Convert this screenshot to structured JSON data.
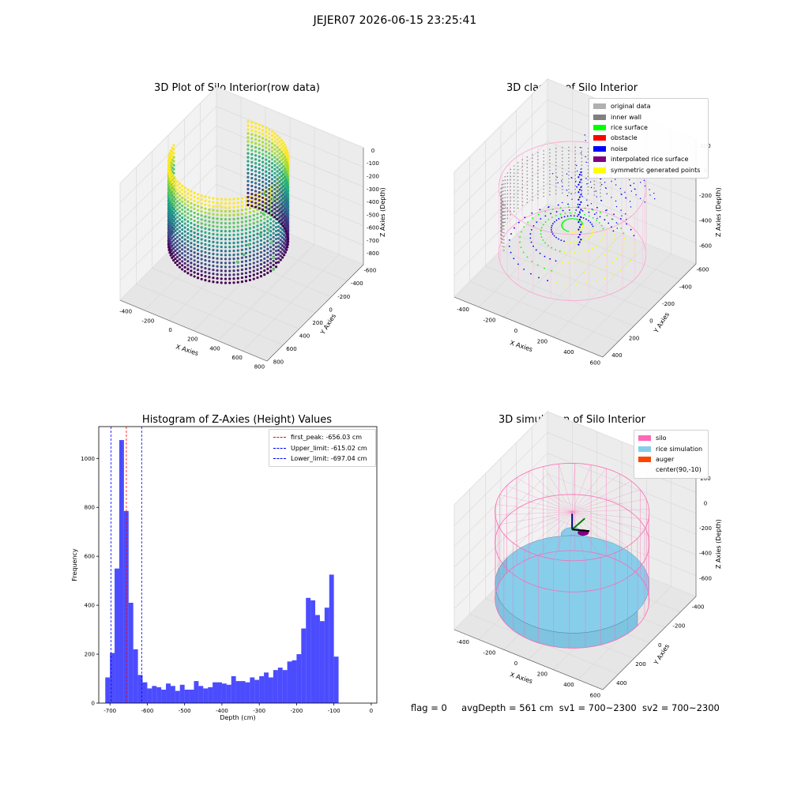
{
  "suptitle": "JEJER07 2026-06-15 23:25:41",
  "panels": {
    "raw": {
      "title": "3D Plot of Silo Interior(row data)",
      "xlabel": "X Axies",
      "ylabel": "Y Axies",
      "zlabel": "Z Axies (Depth)",
      "xticks": [
        "-400",
        "-200",
        "0",
        "200",
        "400",
        "600",
        "800"
      ],
      "yticks": [
        "-600",
        "-400",
        "-200",
        "0",
        "200",
        "400",
        "600",
        "800"
      ],
      "zticks": [
        "0",
        "-100",
        "-200",
        "-300",
        "-400",
        "-500",
        "-600",
        "-700",
        "-800"
      ]
    },
    "classify": {
      "title": "3D classify of Silo Interior",
      "xlabel": "X Axies",
      "ylabel": "Y Axies",
      "zlabel": "Z Axies (Depth)",
      "xticks": [
        "-400",
        "-200",
        "0",
        "200",
        "400",
        "600"
      ],
      "yticks": [
        "-600",
        "-400",
        "-200",
        "0",
        "200",
        "400"
      ],
      "zticks": [
        "200",
        "0",
        "-200",
        "-400",
        "-600"
      ],
      "legend": [
        {
          "label": "original data",
          "color": "#b0b0b0"
        },
        {
          "label": "inner wall",
          "color": "#808080"
        },
        {
          "label": "rice surface",
          "color": "#00ff00"
        },
        {
          "label": "obstacle",
          "color": "#ff0000"
        },
        {
          "label": "noise",
          "color": "#0000ff"
        },
        {
          "label": "interpolated rice surface",
          "color": "#800080"
        },
        {
          "label": "symmetric generated points",
          "color": "#ffff00"
        }
      ]
    },
    "simulation": {
      "title": "3D simulation of Silo Interior",
      "xlabel": "X Axies",
      "ylabel": "Y Axies",
      "zlabel": "Z Axies (Depth)",
      "xticks": [
        "-400",
        "-200",
        "0",
        "200",
        "400",
        "600"
      ],
      "yticks": [
        "-400",
        "-200",
        "0",
        "200",
        "400"
      ],
      "zticks": [
        "200",
        "0",
        "-200",
        "-400",
        "-600"
      ],
      "legend": [
        {
          "label": "silo",
          "color": "#ff69b4"
        },
        {
          "label": "rice simulation",
          "color": "#87ceeb"
        },
        {
          "label": "auger",
          "color": "#ff4500"
        },
        {
          "label": "center(90,-10)",
          "color": ""
        }
      ]
    }
  },
  "status": {
    "flag": "flag = 0",
    "avg_depth": "avgDepth = 561 cm",
    "sv1": "sv1 = 700~2300",
    "sv2": "sv2 = 700~2300"
  },
  "chart_data": [
    {
      "type": "histogram",
      "title": "Histogram of Z-Axies (Height) Values",
      "xlabel": "Depth (cm)",
      "ylabel": "Frequency",
      "xlim": [
        -730,
        15
      ],
      "ylim": [
        0,
        1130
      ],
      "xticks": [
        -700,
        -600,
        -500,
        -400,
        -300,
        -200,
        -100,
        0
      ],
      "yticks": [
        0,
        200,
        400,
        600,
        800,
        1000
      ],
      "bar_color": "#0000ff",
      "bin_width": 12.5,
      "bin_start": -712.5,
      "counts": [
        105,
        205,
        550,
        1075,
        785,
        410,
        220,
        115,
        85,
        60,
        70,
        65,
        55,
        80,
        70,
        50,
        75,
        55,
        55,
        90,
        70,
        60,
        65,
        85,
        85,
        80,
        75,
        110,
        90,
        90,
        85,
        105,
        95,
        110,
        125,
        105,
        135,
        145,
        135,
        170,
        175,
        200,
        305,
        430,
        420,
        360,
        335,
        390,
        525,
        190
      ],
      "vlines": [
        {
          "name": "first_peak",
          "value": -656.03,
          "label": "first_peak: -656.03 cm",
          "color": "#ff0000"
        },
        {
          "name": "Upper_limit",
          "value": -615.02,
          "label": "Upper_limit: -615.02 cm",
          "color": "#0000ff"
        },
        {
          "name": "Lower_limit",
          "value": -697.04,
          "label": "Lower_limit: -697.04 cm",
          "color": "#0000ff"
        }
      ]
    }
  ]
}
